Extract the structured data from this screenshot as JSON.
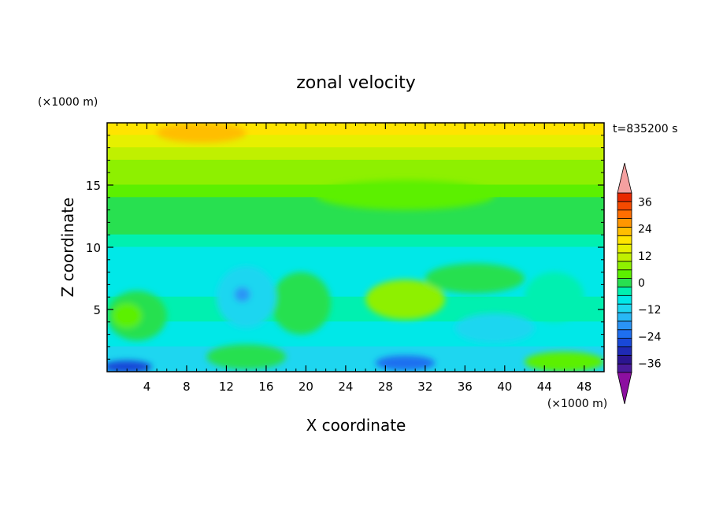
{
  "chart_data": {
    "type": "heatmap",
    "title": "zonal velocity",
    "xlabel": "X coordinate",
    "ylabel": "Z coordinate",
    "x_unit": "(×1000 m)",
    "y_unit": "(×1000 m)",
    "time_label": "t=835200 s",
    "xlim": [
      0,
      50
    ],
    "ylim": [
      0,
      20
    ],
    "x_ticks": [
      4,
      8,
      12,
      16,
      20,
      24,
      28,
      32,
      36,
      40,
      44,
      48
    ],
    "y_ticks": [
      5,
      10,
      15
    ],
    "colorbar": {
      "levels": [
        -40,
        -36,
        -32,
        -28,
        -24,
        -20,
        -16,
        -12,
        -8,
        -4,
        0,
        4,
        8,
        12,
        16,
        20,
        24,
        28,
        32,
        36,
        40
      ],
      "tick_labels": [
        36,
        24,
        12,
        0,
        -12,
        -24,
        -36
      ],
      "colors": [
        "#4a1a9a",
        "#2b1590",
        "#1f2ab5",
        "#1848d8",
        "#1e6ff0",
        "#2a94f5",
        "#28b8f5",
        "#1ed6f0",
        "#00e8e8",
        "#00f0b0",
        "#28e050",
        "#5cf000",
        "#8ef000",
        "#c0f000",
        "#e6f000",
        "#ffe400",
        "#ffbe00",
        "#ff9600",
        "#ff6e00",
        "#f54a00",
        "#e82800"
      ],
      "under_color": "#8c0fa0",
      "over_color": "#f4a0a0"
    },
    "bands": [
      {
        "z": 19.5,
        "value": 20
      },
      {
        "z": 18.5,
        "value": 16
      },
      {
        "z": 17.5,
        "value": 14
      },
      {
        "z": 16.5,
        "value": 10
      },
      {
        "z": 15.5,
        "value": 8
      },
      {
        "z": 14.5,
        "value": 5
      },
      {
        "z": 13.5,
        "value": 3
      },
      {
        "z": 12.5,
        "value": 2
      },
      {
        "z": 11.5,
        "value": 0
      },
      {
        "z": 10.5,
        "value": -4
      },
      {
        "z": 9.5,
        "value": -6
      },
      {
        "z": 8.5,
        "value": -7
      },
      {
        "z": 7.5,
        "value": -6
      },
      {
        "z": 6.5,
        "value": -5
      },
      {
        "z": 5.5,
        "value": -3
      },
      {
        "z": 4.5,
        "value": -2
      },
      {
        "z": 3.5,
        "value": -5
      },
      {
        "z": 2.5,
        "value": -8
      },
      {
        "z": 1.5,
        "value": -10
      },
      {
        "z": 0.5,
        "value": -12
      }
    ],
    "features": [
      {
        "x": 9.5,
        "z": 19.2,
        "rx": 4.5,
        "rz": 0.8,
        "value": 24
      },
      {
        "x": 30,
        "z": 14.2,
        "rx": 9,
        "rz": 1.2,
        "value": 6
      },
      {
        "x": 30,
        "z": 5.8,
        "rx": 4,
        "rz": 1.6,
        "value": 8
      },
      {
        "x": 30,
        "z": 5.8,
        "rx": 2.5,
        "rz": 0.9,
        "value": 10
      },
      {
        "x": 3,
        "z": 4.5,
        "rx": 3,
        "rz": 2,
        "value": 2
      },
      {
        "x": 2,
        "z": 4.5,
        "rx": 1.5,
        "rz": 1,
        "value": 6
      },
      {
        "x": 19.5,
        "z": 5.5,
        "rx": 3,
        "rz": 2.5,
        "value": 0
      },
      {
        "x": 14,
        "z": 6,
        "rx": 3,
        "rz": 2.5,
        "value": -10
      },
      {
        "x": 13.6,
        "z": 6.2,
        "rx": 0.8,
        "rz": 0.6,
        "value": -20
      },
      {
        "x": 39,
        "z": 3.5,
        "rx": 4,
        "rz": 1.2,
        "value": -12
      },
      {
        "x": 30,
        "z": 0.7,
        "rx": 3,
        "rz": 0.6,
        "value": -22
      },
      {
        "x": 2,
        "z": 0.4,
        "rx": 2.5,
        "rz": 0.5,
        "value": -26
      },
      {
        "x": 14,
        "z": 1.2,
        "rx": 4,
        "rz": 1,
        "value": 2
      },
      {
        "x": 46,
        "z": 0.8,
        "rx": 4,
        "rz": 0.8,
        "value": 4
      },
      {
        "x": 45,
        "z": 6,
        "rx": 3,
        "rz": 2,
        "value": -2
      },
      {
        "x": 37,
        "z": 7.5,
        "rx": 5,
        "rz": 1.2,
        "value": 0
      }
    ]
  }
}
